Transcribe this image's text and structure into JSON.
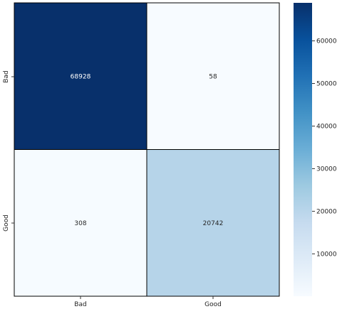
{
  "chart_data": {
    "type": "heatmap",
    "title": "",
    "xlabel": "",
    "ylabel": "",
    "x_categories": [
      "Bad",
      "Good"
    ],
    "y_categories": [
      "Bad",
      "Good"
    ],
    "values": [
      [
        68928,
        58
      ],
      [
        308,
        20742
      ]
    ],
    "colormap": "Blues",
    "color_min": "#f7fbff",
    "color_max": "#08306b",
    "colorbar": {
      "range": [
        58,
        68928
      ],
      "ticks": [
        "10000",
        "20000",
        "30000",
        "40000",
        "50000",
        "60000"
      ],
      "tick_values": [
        10000,
        20000,
        30000,
        40000,
        50000,
        60000
      ]
    },
    "annotate": true,
    "grid": false,
    "legend": "none"
  }
}
